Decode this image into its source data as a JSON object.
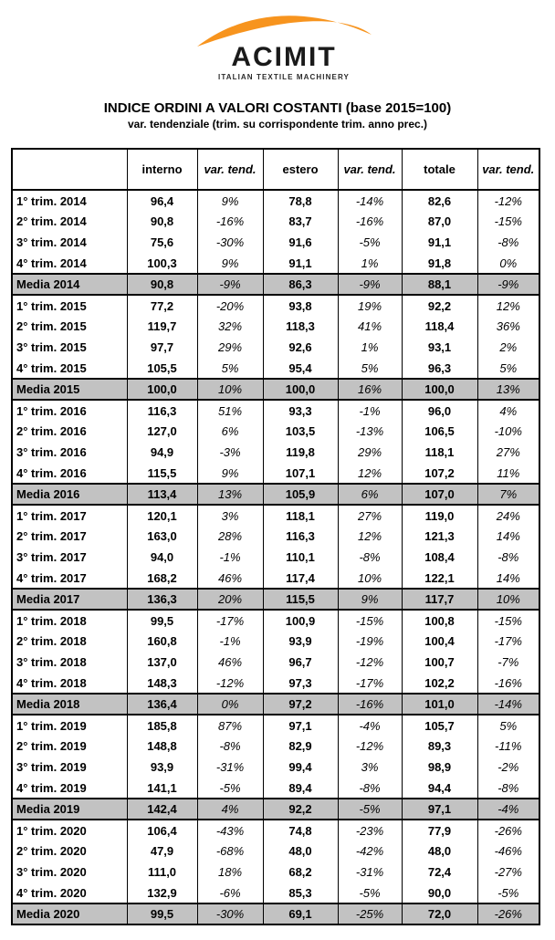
{
  "logo": {
    "name": "ACIMIT",
    "tagline": "ITALIAN TEXTILE MACHINERY",
    "arc_color": "#F7941E"
  },
  "title": "INDICE ORDINI A VALORI COSTANTI (base 2015=100)",
  "subtitle": "var. tendenziale (trim. su corrispondente trim. anno prec.)",
  "table": {
    "media_row_bg": "#C2C2C2",
    "columns": [
      "",
      "interno",
      "var. tend.",
      "estero",
      "var. tend.",
      "totale",
      "var. tend."
    ],
    "rows": [
      {
        "label": "1° trim. 2014",
        "type": "quarter",
        "values": [
          "96,4",
          "9%",
          "78,8",
          "-14%",
          "82,6",
          "-12%"
        ]
      },
      {
        "label": "2° trim. 2014",
        "type": "quarter",
        "values": [
          "90,8",
          "-16%",
          "83,7",
          "-16%",
          "87,0",
          "-15%"
        ]
      },
      {
        "label": "3° trim. 2014",
        "type": "quarter",
        "values": [
          "75,6",
          "-30%",
          "91,6",
          "-5%",
          "91,1",
          "-8%"
        ]
      },
      {
        "label": "4° trim. 2014",
        "type": "quarter",
        "values": [
          "100,3",
          "9%",
          "91,1",
          "1%",
          "91,8",
          "0%"
        ]
      },
      {
        "label": "Media 2014",
        "type": "media",
        "values": [
          "90,8",
          "-9%",
          "86,3",
          "-9%",
          "88,1",
          "-9%"
        ]
      },
      {
        "label": "1° trim. 2015",
        "type": "quarter",
        "values": [
          "77,2",
          "-20%",
          "93,8",
          "19%",
          "92,2",
          "12%"
        ]
      },
      {
        "label": "2° trim. 2015",
        "type": "quarter",
        "values": [
          "119,7",
          "32%",
          "118,3",
          "41%",
          "118,4",
          "36%"
        ]
      },
      {
        "label": "3° trim. 2015",
        "type": "quarter",
        "values": [
          "97,7",
          "29%",
          "92,6",
          "1%",
          "93,1",
          "2%"
        ]
      },
      {
        "label": "4° trim. 2015",
        "type": "quarter",
        "values": [
          "105,5",
          "5%",
          "95,4",
          "5%",
          "96,3",
          "5%"
        ]
      },
      {
        "label": "Media 2015",
        "type": "media",
        "values": [
          "100,0",
          "10%",
          "100,0",
          "16%",
          "100,0",
          "13%"
        ]
      },
      {
        "label": "1° trim. 2016",
        "type": "quarter",
        "values": [
          "116,3",
          "51%",
          "93,3",
          "-1%",
          "96,0",
          "4%"
        ]
      },
      {
        "label": "2° trim. 2016",
        "type": "quarter",
        "values": [
          "127,0",
          "6%",
          "103,5",
          "-13%",
          "106,5",
          "-10%"
        ]
      },
      {
        "label": "3° trim. 2016",
        "type": "quarter",
        "values": [
          "94,9",
          "-3%",
          "119,8",
          "29%",
          "118,1",
          "27%"
        ]
      },
      {
        "label": "4° trim. 2016",
        "type": "quarter",
        "values": [
          "115,5",
          "9%",
          "107,1",
          "12%",
          "107,2",
          "11%"
        ]
      },
      {
        "label": "Media 2016",
        "type": "media",
        "values": [
          "113,4",
          "13%",
          "105,9",
          "6%",
          "107,0",
          "7%"
        ]
      },
      {
        "label": "1° trim. 2017",
        "type": "quarter",
        "values": [
          "120,1",
          "3%",
          "118,1",
          "27%",
          "119,0",
          "24%"
        ]
      },
      {
        "label": "2° trim. 2017",
        "type": "quarter",
        "values": [
          "163,0",
          "28%",
          "116,3",
          "12%",
          "121,3",
          "14%"
        ]
      },
      {
        "label": "3° trim. 2017",
        "type": "quarter",
        "values": [
          "94,0",
          "-1%",
          "110,1",
          "-8%",
          "108,4",
          "-8%"
        ]
      },
      {
        "label": "4° trim. 2017",
        "type": "quarter",
        "values": [
          "168,2",
          "46%",
          "117,4",
          "10%",
          "122,1",
          "14%"
        ]
      },
      {
        "label": "Media 2017",
        "type": "media",
        "values": [
          "136,3",
          "20%",
          "115,5",
          "9%",
          "117,7",
          "10%"
        ]
      },
      {
        "label": "1° trim. 2018",
        "type": "quarter",
        "values": [
          "99,5",
          "-17%",
          "100,9",
          "-15%",
          "100,8",
          "-15%"
        ]
      },
      {
        "label": "2° trim. 2018",
        "type": "quarter",
        "values": [
          "160,8",
          "-1%",
          "93,9",
          "-19%",
          "100,4",
          "-17%"
        ]
      },
      {
        "label": "3° trim. 2018",
        "type": "quarter",
        "values": [
          "137,0",
          "46%",
          "96,7",
          "-12%",
          "100,7",
          "-7%"
        ]
      },
      {
        "label": "4° trim. 2018",
        "type": "quarter",
        "values": [
          "148,3",
          "-12%",
          "97,3",
          "-17%",
          "102,2",
          "-16%"
        ]
      },
      {
        "label": "Media 2018",
        "type": "media",
        "values": [
          "136,4",
          "0%",
          "97,2",
          "-16%",
          "101,0",
          "-14%"
        ]
      },
      {
        "label": "1° trim. 2019",
        "type": "quarter",
        "values": [
          "185,8",
          "87%",
          "97,1",
          "-4%",
          "105,7",
          "5%"
        ]
      },
      {
        "label": "2° trim. 2019",
        "type": "quarter",
        "values": [
          "148,8",
          "-8%",
          "82,9",
          "-12%",
          "89,3",
          "-11%"
        ]
      },
      {
        "label": "3° trim. 2019",
        "type": "quarter",
        "values": [
          "93,9",
          "-31%",
          "99,4",
          "3%",
          "98,9",
          "-2%"
        ]
      },
      {
        "label": "4° trim. 2019",
        "type": "quarter",
        "values": [
          "141,1",
          "-5%",
          "89,4",
          "-8%",
          "94,4",
          "-8%"
        ]
      },
      {
        "label": "Media 2019",
        "type": "media",
        "values": [
          "142,4",
          "4%",
          "92,2",
          "-5%",
          "97,1",
          "-4%"
        ]
      },
      {
        "label": "1° trim. 2020",
        "type": "quarter",
        "values": [
          "106,4",
          "-43%",
          "74,8",
          "-23%",
          "77,9",
          "-26%"
        ]
      },
      {
        "label": "2° trim. 2020",
        "type": "quarter",
        "values": [
          "47,9",
          "-68%",
          "48,0",
          "-42%",
          "48,0",
          "-46%"
        ]
      },
      {
        "label": "3° trim. 2020",
        "type": "quarter",
        "values": [
          "111,0",
          "18%",
          "68,2",
          "-31%",
          "72,4",
          "-27%"
        ]
      },
      {
        "label": "4° trim. 2020",
        "type": "quarter",
        "values": [
          "132,9",
          "-6%",
          "85,3",
          "-5%",
          "90,0",
          "-5%"
        ]
      },
      {
        "label": "Media 2020",
        "type": "media",
        "values": [
          "99,5",
          "-30%",
          "69,1",
          "-25%",
          "72,0",
          "-26%"
        ]
      }
    ]
  }
}
